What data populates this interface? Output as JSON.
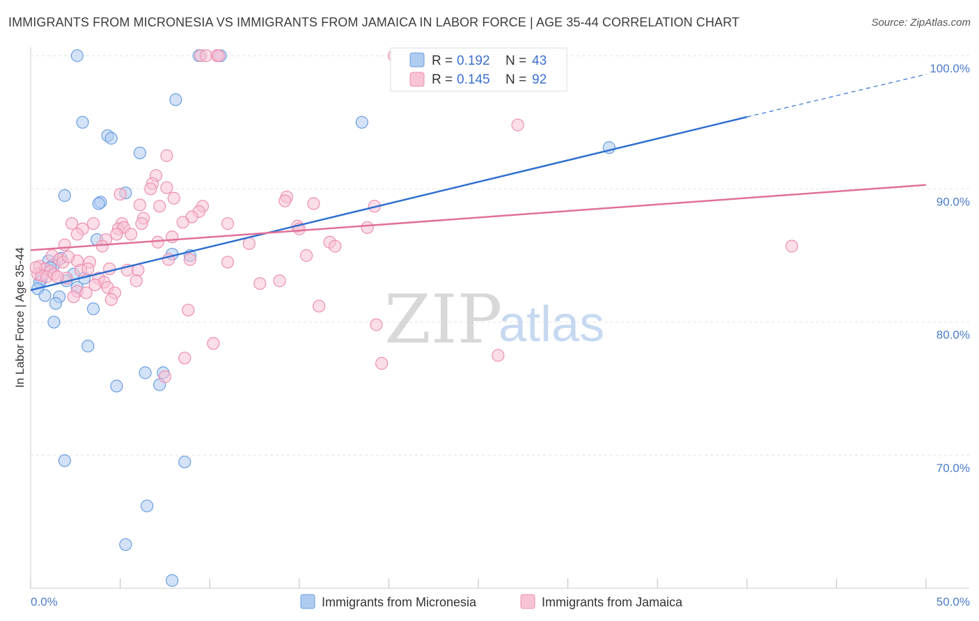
{
  "title": "IMMIGRANTS FROM MICRONESIA VS IMMIGRANTS FROM JAMAICA IN LABOR FORCE | AGE 35-44 CORRELATION CHART",
  "source": "Source: ZipAtlas.com",
  "watermark": {
    "zip": "ZIP",
    "atlas": "atlas"
  },
  "chart_data": {
    "type": "scatter",
    "xlabel": "",
    "ylabel": "In Labor Force | Age 35-44",
    "xlim": [
      0,
      50
    ],
    "ylim": [
      60,
      100
    ],
    "x_tick_labels": [
      "0.0%",
      "50.0%"
    ],
    "y_ticks": [
      70,
      80,
      90,
      100
    ],
    "y_tick_labels": [
      "70.0%",
      "80.0%",
      "90.0%",
      "100.0%"
    ],
    "grid": true,
    "legend": {
      "placement": "top-center",
      "entries": [
        {
          "r_label": "R = ",
          "r_value": "0.192",
          "n_label": "N = ",
          "n_value": "43"
        },
        {
          "r_label": "R = ",
          "r_value": "0.145",
          "n_label": "N = ",
          "n_value": "92"
        }
      ]
    },
    "series": [
      {
        "name": "Immigrants from Micronesia",
        "color": "#6a9ee0",
        "fill": "#aecbf0",
        "line_color": "#2f6fd0",
        "trend": {
          "x0": 0,
          "y0": 82.4,
          "x1": 40,
          "y1": 95.4,
          "dash_x1": 50,
          "dash_y1": 98.6
        },
        "points": [
          [
            2.6,
            100
          ],
          [
            9.4,
            100
          ],
          [
            10.6,
            100
          ],
          [
            8.1,
            96.7
          ],
          [
            2.9,
            95.0
          ],
          [
            18.5,
            95.0
          ],
          [
            4.3,
            94.0
          ],
          [
            4.5,
            93.8
          ],
          [
            6.1,
            92.7
          ],
          [
            32.3,
            93.1
          ],
          [
            1.9,
            89.5
          ],
          [
            5.3,
            89.7
          ],
          [
            3.9,
            89.0
          ],
          [
            3.8,
            88.9
          ],
          [
            3.7,
            86.2
          ],
          [
            7.9,
            85.1
          ],
          [
            8.9,
            85.0
          ],
          [
            1.0,
            84.6
          ],
          [
            1.7,
            84.8
          ],
          [
            1.3,
            84.3
          ],
          [
            1.1,
            84.1
          ],
          [
            2.4,
            83.6
          ],
          [
            0.6,
            83.2
          ],
          [
            0.5,
            83.0
          ],
          [
            2.0,
            83.1
          ],
          [
            3.0,
            83.3
          ],
          [
            0.4,
            82.5
          ],
          [
            2.6,
            82.6
          ],
          [
            0.8,
            82.0
          ],
          [
            1.6,
            81.9
          ],
          [
            1.4,
            81.4
          ],
          [
            3.5,
            81.0
          ],
          [
            1.3,
            80.0
          ],
          [
            3.2,
            78.2
          ],
          [
            6.4,
            76.2
          ],
          [
            7.4,
            76.2
          ],
          [
            7.2,
            75.3
          ],
          [
            4.8,
            75.2
          ],
          [
            1.9,
            69.6
          ],
          [
            8.6,
            69.5
          ],
          [
            6.5,
            66.2
          ],
          [
            5.3,
            63.3
          ],
          [
            7.9,
            60.6
          ]
        ]
      },
      {
        "name": "Immigrants from Jamaica",
        "color": "#ec8fb0",
        "fill": "#f7c3d5",
        "line_color": "#e07098",
        "trend": {
          "x0": 0,
          "y0": 85.4,
          "x1": 50,
          "y1": 90.3
        },
        "points": [
          [
            9.5,
            100
          ],
          [
            9.8,
            100
          ],
          [
            10.4,
            100
          ],
          [
            10.5,
            100
          ],
          [
            20.3,
            100
          ],
          [
            27.2,
            94.8
          ],
          [
            7.6,
            92.5
          ],
          [
            7.0,
            91.0
          ],
          [
            6.8,
            90.4
          ],
          [
            6.7,
            90.0
          ],
          [
            7.6,
            90.1
          ],
          [
            5.0,
            89.6
          ],
          [
            8.0,
            89.3
          ],
          [
            14.3,
            89.4
          ],
          [
            14.2,
            89.1
          ],
          [
            15.8,
            88.9
          ],
          [
            19.2,
            88.7
          ],
          [
            6.1,
            88.8
          ],
          [
            7.2,
            88.7
          ],
          [
            9.6,
            88.7
          ],
          [
            9.4,
            88.3
          ],
          [
            9.0,
            87.9
          ],
          [
            6.3,
            87.8
          ],
          [
            2.3,
            87.4
          ],
          [
            3.5,
            87.4
          ],
          [
            5.1,
            87.4
          ],
          [
            6.2,
            87.4
          ],
          [
            8.5,
            87.5
          ],
          [
            11.0,
            87.4
          ],
          [
            2.9,
            87.0
          ],
          [
            4.9,
            87.0
          ],
          [
            5.2,
            87.1
          ],
          [
            14.9,
            87.2
          ],
          [
            15.0,
            87.0
          ],
          [
            18.8,
            87.1
          ],
          [
            2.6,
            86.6
          ],
          [
            4.8,
            86.6
          ],
          [
            5.6,
            86.6
          ],
          [
            7.9,
            86.4
          ],
          [
            4.2,
            86.2
          ],
          [
            7.1,
            86.0
          ],
          [
            12.2,
            85.9
          ],
          [
            16.7,
            86.0
          ],
          [
            17.0,
            85.7
          ],
          [
            1.9,
            85.8
          ],
          [
            4.0,
            85.7
          ],
          [
            42.5,
            85.7
          ],
          [
            15.4,
            85.0
          ],
          [
            1.2,
            85.0
          ],
          [
            1.6,
            84.7
          ],
          [
            2.6,
            84.6
          ],
          [
            3.3,
            84.5
          ],
          [
            1.8,
            84.5
          ],
          [
            7.7,
            84.7
          ],
          [
            8.9,
            84.7
          ],
          [
            11.0,
            84.5
          ],
          [
            0.5,
            84.2
          ],
          [
            0.8,
            84.0
          ],
          [
            1.1,
            83.8
          ],
          [
            2.8,
            83.9
          ],
          [
            3.2,
            84.0
          ],
          [
            4.4,
            84.0
          ],
          [
            5.4,
            83.9
          ],
          [
            6.0,
            83.9
          ],
          [
            0.4,
            83.6
          ],
          [
            0.6,
            83.5
          ],
          [
            0.9,
            83.4
          ],
          [
            1.3,
            83.6
          ],
          [
            2.0,
            83.3
          ],
          [
            3.8,
            83.3
          ],
          [
            4.1,
            83.0
          ],
          [
            5.9,
            83.1
          ],
          [
            3.6,
            82.8
          ],
          [
            13.9,
            83.1
          ],
          [
            12.8,
            82.9
          ],
          [
            4.3,
            82.6
          ],
          [
            2.6,
            82.3
          ],
          [
            3.1,
            82.2
          ],
          [
            4.7,
            82.2
          ],
          [
            2.4,
            81.9
          ],
          [
            4.5,
            81.7
          ],
          [
            16.1,
            81.2
          ],
          [
            8.8,
            80.9
          ],
          [
            19.3,
            79.8
          ],
          [
            10.2,
            78.4
          ],
          [
            8.6,
            77.3
          ],
          [
            26.1,
            77.5
          ],
          [
            19.6,
            76.9
          ],
          [
            7.5,
            75.9
          ],
          [
            2.1,
            84.9
          ],
          [
            0.3,
            84.1
          ],
          [
            1.5,
            83.4
          ]
        ]
      }
    ]
  }
}
